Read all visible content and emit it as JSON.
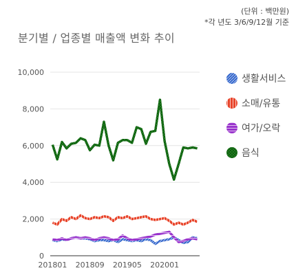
{
  "notes": {
    "unit": "(단위 : 백만원)",
    "basis": "*각 년도 3/6/9/12월 기준"
  },
  "chart_data": {
    "type": "line",
    "title": "분기별 / 업종별 매출액 변화 추이",
    "xlabel": "",
    "ylabel": "",
    "ylim": [
      0,
      10000
    ],
    "yticks": [
      "0",
      "2,000",
      "4,000",
      "6,000",
      "8,000",
      "10,000"
    ],
    "x": [
      "201801",
      "201802",
      "201803",
      "201804",
      "201805",
      "201806",
      "201807",
      "201808",
      "201809",
      "201810",
      "201811",
      "201812",
      "201901",
      "201902",
      "201903",
      "201904",
      "201905",
      "201906",
      "201907",
      "201908",
      "201909",
      "201910",
      "201911",
      "201912",
      "202001",
      "202002",
      "202003",
      "202004",
      "202005",
      "202006",
      "202007",
      "202008"
    ],
    "xtick_labels": [
      "201801",
      "201809",
      "201905",
      "202001"
    ],
    "grid": "horizontal",
    "legend": "right",
    "series": [
      {
        "name": "생활서비스",
        "color": "#3366CC",
        "pattern": "diagonal",
        "values": [
          850,
          800,
          900,
          850,
          950,
          1000,
          950,
          950,
          900,
          800,
          850,
          850,
          800,
          850,
          750,
          900,
          850,
          800,
          850,
          800,
          900,
          850,
          650,
          800,
          850,
          900,
          1000,
          850,
          700,
          750,
          1000,
          950
        ]
      },
      {
        "name": "소매/유통",
        "color": "#E8442A",
        "pattern": "vertical",
        "values": [
          1800,
          1700,
          2000,
          1900,
          2100,
          2000,
          2200,
          2050,
          2000,
          2100,
          2050,
          2150,
          2100,
          1900,
          2100,
          2050,
          2150,
          2000,
          2050,
          2100,
          2150,
          2000,
          1950,
          2000,
          2050,
          1900,
          1700,
          1800,
          1700,
          1800,
          1950,
          1850
        ]
      },
      {
        "name": "여가/오락",
        "color": "#9933CC",
        "pattern": "horizontal",
        "values": [
          900,
          850,
          950,
          850,
          950,
          1000,
          950,
          1000,
          950,
          850,
          950,
          1000,
          950,
          850,
          900,
          1100,
          950,
          850,
          900,
          950,
          1000,
          1050,
          1150,
          1200,
          1250,
          1300,
          1000,
          750,
          800,
          900,
          950,
          900
        ]
      },
      {
        "name": "음식",
        "color": "#1E7D1E",
        "pattern": "checker",
        "values": [
          6050,
          5250,
          6200,
          5850,
          6100,
          6150,
          6400,
          6300,
          5750,
          6050,
          6000,
          7300,
          6000,
          5200,
          6150,
          6300,
          6300,
          6150,
          7000,
          6900,
          6100,
          6750,
          6800,
          8500,
          6250,
          5000,
          4150,
          5000,
          5900,
          5850,
          5900,
          5850
        ]
      }
    ]
  }
}
